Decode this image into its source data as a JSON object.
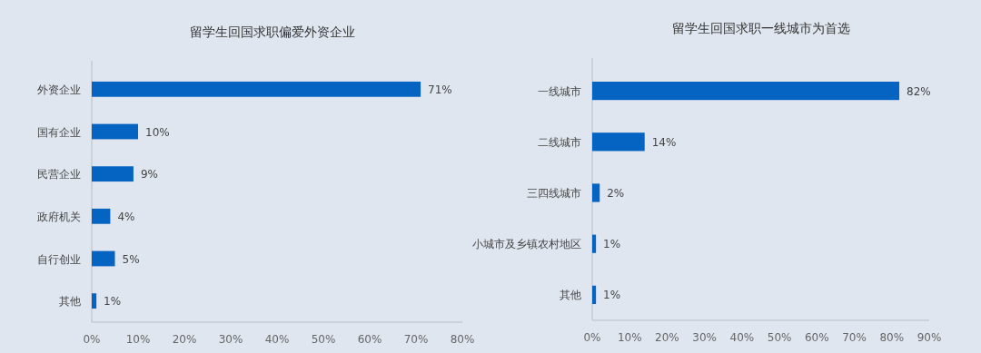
{
  "chart_data": [
    {
      "type": "bar",
      "orientation": "horizontal",
      "title": "留学生回国求职偏爱外资企业",
      "categories": [
        "外资企业",
        "国有企业",
        "民营企业",
        "政府机关",
        "自行创业",
        "其他"
      ],
      "values": [
        71,
        10,
        9,
        4,
        5,
        1
      ],
      "color": "#0563c1",
      "value_labels": [
        "71%",
        "10%",
        "9%",
        "4%",
        "5%",
        "1%"
      ],
      "xlim": [
        0,
        80
      ],
      "xticks": [
        {
          "value": 0,
          "label": "0%"
        },
        {
          "value": 10,
          "label": "10%"
        },
        {
          "value": 20,
          "label": "20%"
        },
        {
          "value": 30,
          "label": "30%"
        },
        {
          "value": 40,
          "label": "40%"
        },
        {
          "value": 50,
          "label": "50%"
        },
        {
          "value": 60,
          "label": "60%"
        },
        {
          "value": 70,
          "label": "70%"
        },
        {
          "value": 80,
          "label": "80%"
        }
      ],
      "grid": false
    },
    {
      "type": "bar",
      "orientation": "horizontal",
      "title": "留学生回国求职一线城市为首选",
      "categories": [
        "一线城市",
        "二线城市",
        "三四线城市",
        "小城市及乡镇农村地区",
        "其他"
      ],
      "values": [
        82,
        14,
        2,
        1,
        1
      ],
      "color": "#0563c1",
      "value_labels": [
        "82%",
        "14%",
        "2%",
        "1%",
        "1%"
      ],
      "xlim": [
        0,
        90
      ],
      "xticks": [
        {
          "value": 0,
          "label": "0%"
        },
        {
          "value": 10,
          "label": "10%"
        },
        {
          "value": 20,
          "label": "20%"
        },
        {
          "value": 30,
          "label": "30%"
        },
        {
          "value": 40,
          "label": "40%"
        },
        {
          "value": 50,
          "label": "50%"
        },
        {
          "value": 60,
          "label": "60%"
        },
        {
          "value": 70,
          "label": "70%"
        },
        {
          "value": 80,
          "label": "80%"
        },
        {
          "value": 90,
          "label": "90%"
        }
      ],
      "grid": false
    }
  ]
}
